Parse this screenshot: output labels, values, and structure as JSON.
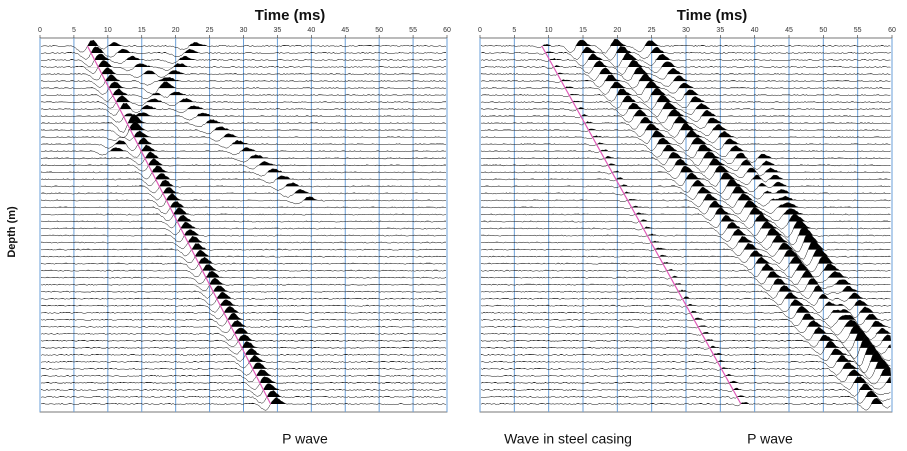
{
  "chart_data": [
    {
      "type": "wiggle",
      "xlabel": "Time (ms)",
      "ylabel": "Depth (m)",
      "xlim": [
        0,
        60
      ],
      "xticks": [
        0,
        5,
        10,
        15,
        20,
        25,
        30,
        35,
        40,
        45,
        50,
        55,
        60
      ],
      "annotations": [
        "P wave"
      ]
    },
    {
      "type": "wiggle",
      "xlabel": "Time (ms)",
      "xlim": [
        0,
        60
      ],
      "xticks": [
        0,
        5,
        10,
        15,
        20,
        25,
        30,
        35,
        40,
        45,
        50,
        55,
        60
      ],
      "annotations": [
        "Wave in steel casing",
        "P wave"
      ]
    }
  ]
}
